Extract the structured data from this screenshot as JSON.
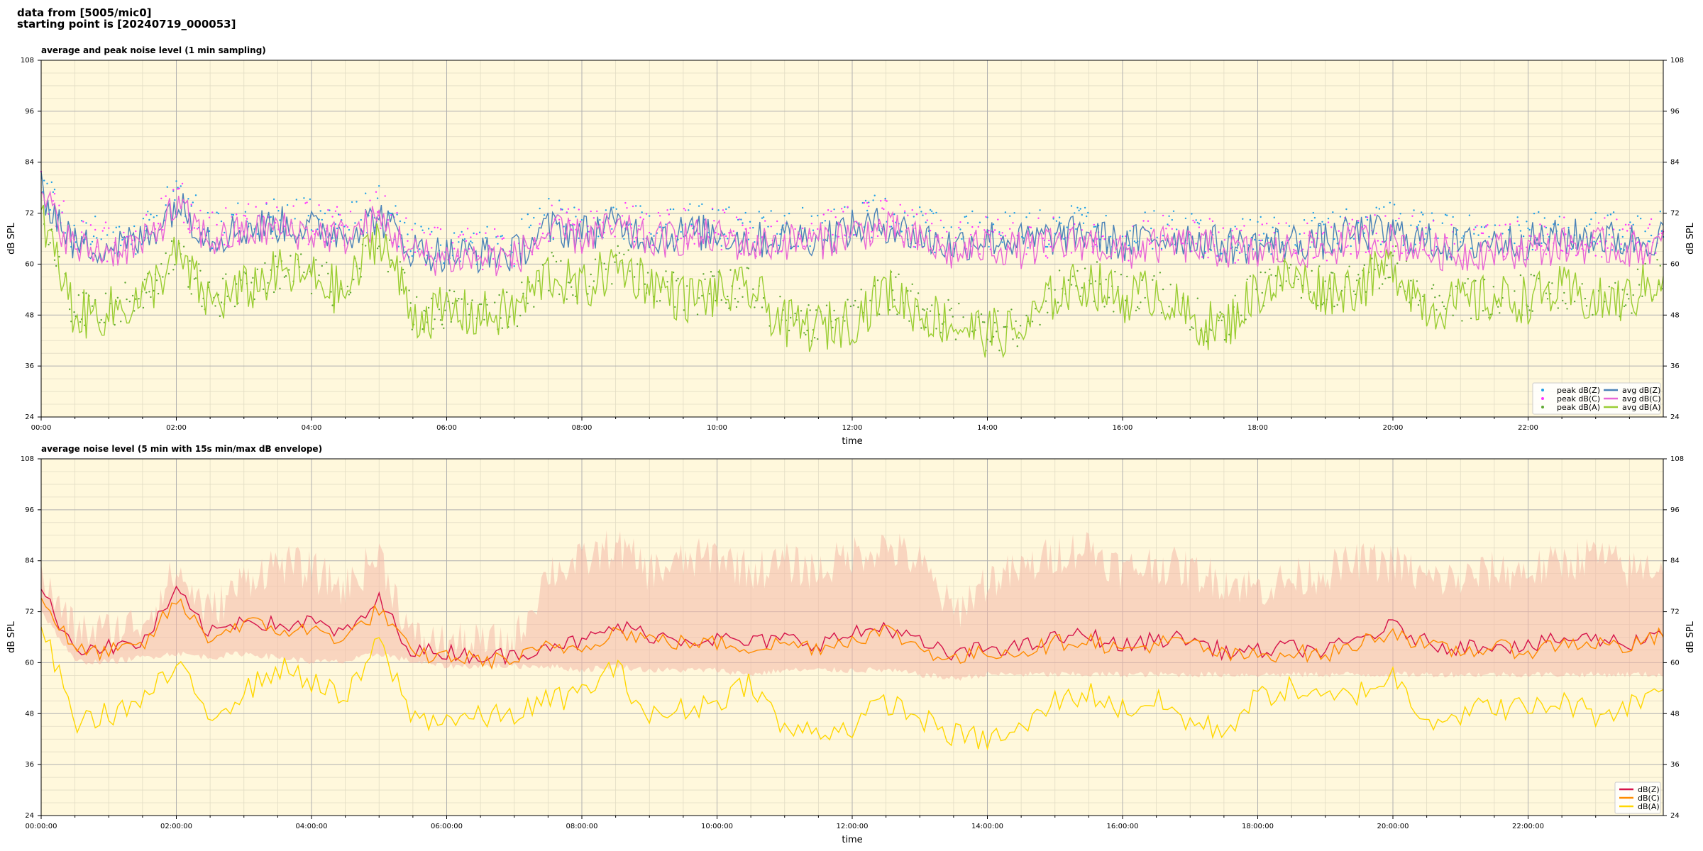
{
  "header": {
    "line1": "data from [5005/mic0]",
    "line2": "starting point is [20240719_000053]"
  },
  "chart_data": [
    {
      "type": "line",
      "title": "average and peak noise level (1 min sampling)",
      "xlabel": "time",
      "ylabel": "dB SPL",
      "xlim": [
        0,
        24
      ],
      "ylim": [
        24,
        108
      ],
      "x_ticks": [
        "00:00",
        "02:00",
        "04:00",
        "06:00",
        "08:00",
        "10:00",
        "12:00",
        "14:00",
        "16:00",
        "18:00",
        "20:00",
        "22:00"
      ],
      "y_ticks": [
        24,
        36,
        48,
        60,
        72,
        84,
        96,
        108
      ],
      "grid": true,
      "background": "#fff8dc",
      "legend_position": "lower right",
      "legend": [
        {
          "name": "peak dB(Z)",
          "kind": "dot",
          "color": "#1f9fe6"
        },
        {
          "name": "peak dB(C)",
          "kind": "dot",
          "color": "#ff33ff"
        },
        {
          "name": "peak dB(A)",
          "kind": "dot",
          "color": "#5fa832"
        },
        {
          "name": "avg dB(Z)",
          "kind": "line",
          "color": "#4a82b8"
        },
        {
          "name": "avg dB(C)",
          "kind": "line",
          "color": "#e866d6"
        },
        {
          "name": "avg dB(A)",
          "kind": "line",
          "color": "#9acd32"
        }
      ],
      "x": [
        0,
        0.5,
        1,
        1.5,
        2,
        2.5,
        3,
        3.5,
        4,
        4.5,
        5,
        5.5,
        6,
        6.5,
        7,
        7.5,
        8,
        8.5,
        9,
        9.5,
        10,
        10.5,
        11,
        11.5,
        12,
        12.5,
        13,
        13.5,
        14,
        14.5,
        15,
        15.5,
        16,
        16.5,
        17,
        17.5,
        18,
        18.5,
        19,
        19.5,
        20,
        20.5,
        21,
        21.5,
        22,
        22.5,
        23,
        23.5,
        24
      ],
      "series": [
        {
          "name": "avg dB(Z)",
          "color": "#4a82b8",
          "values": [
            76,
            63,
            63,
            64,
            73,
            65,
            67,
            68,
            67,
            66,
            70,
            62,
            61,
            61,
            61,
            67,
            66,
            68,
            65,
            66,
            66,
            64,
            65,
            65,
            67,
            68,
            65,
            63,
            65,
            64,
            65,
            66,
            63,
            65,
            65,
            63,
            63,
            64,
            64,
            66,
            66,
            64,
            63,
            64,
            64,
            65,
            65,
            64,
            65
          ]
        },
        {
          "name": "avg dB(C)",
          "color": "#e866d6",
          "values": [
            75,
            62,
            62,
            63,
            72,
            64,
            66,
            67,
            66,
            65,
            69,
            61,
            60,
            60,
            60,
            66,
            65,
            67,
            64,
            65,
            65,
            63,
            64,
            64,
            66,
            67,
            64,
            61,
            63,
            62,
            63,
            64,
            61,
            63,
            63,
            62,
            61,
            62,
            62,
            64,
            64,
            62,
            61,
            62,
            62,
            63,
            63,
            62,
            63
          ]
        },
        {
          "name": "avg dB(A)",
          "color": "#9acd32",
          "values": [
            70,
            46,
            47,
            50,
            60,
            49,
            52,
            56,
            55,
            51,
            66,
            46,
            47,
            46,
            47,
            56,
            52,
            58,
            54,
            50,
            51,
            52,
            44,
            43,
            45,
            52,
            47,
            44,
            42,
            42,
            51,
            54,
            50,
            52,
            45,
            43,
            52,
            55,
            52,
            53,
            58,
            48,
            49,
            50,
            50,
            52,
            49,
            50,
            56
          ]
        }
      ]
    },
    {
      "type": "line",
      "title": "average noise level (5 min with 15s min/max dB envelope)",
      "xlabel": "time",
      "ylabel": "dB SPL",
      "xlim": [
        0,
        24
      ],
      "ylim": [
        24,
        108
      ],
      "x_ticks": [
        "00:00:00",
        "02:00:00",
        "04:00:00",
        "06:00:00",
        "08:00:00",
        "10:00:00",
        "12:00:00",
        "14:00:00",
        "16:00:00",
        "18:00:00",
        "20:00:00",
        "22:00:00"
      ],
      "y_ticks": [
        24,
        36,
        48,
        60,
        72,
        84,
        96,
        108
      ],
      "grid": true,
      "background": "#fff8dc",
      "legend_position": "lower right",
      "legend": [
        {
          "name": "dB(Z)",
          "kind": "line",
          "color": "#d6134a"
        },
        {
          "name": "dB(C)",
          "kind": "line",
          "color": "#ff8c00"
        },
        {
          "name": "dB(A)",
          "kind": "line",
          "color": "#ffd700"
        }
      ],
      "envelope_color": "#f4b8a8",
      "x": [
        0,
        0.5,
        1,
        1.5,
        2,
        2.5,
        3,
        3.5,
        4,
        4.5,
        5,
        5.5,
        6,
        6.5,
        7,
        7.5,
        8,
        8.5,
        9,
        9.5,
        10,
        10.5,
        11,
        11.5,
        12,
        12.5,
        13,
        13.5,
        14,
        14.5,
        15,
        15.5,
        16,
        16.5,
        17,
        17.5,
        18,
        18.5,
        19,
        19.5,
        20,
        20.5,
        21,
        21.5,
        22,
        22.5,
        23,
        23.5,
        24
      ],
      "envelope_max": [
        78,
        66,
        66,
        68,
        80,
        70,
        78,
        82,
        80,
        76,
        84,
        64,
        63,
        63,
        63,
        80,
        82,
        86,
        80,
        82,
        84,
        80,
        82,
        80,
        84,
        86,
        82,
        70,
        78,
        80,
        84,
        86,
        80,
        82,
        80,
        78,
        76,
        78,
        80,
        82,
        82,
        78,
        78,
        80,
        80,
        82,
        84,
        80,
        82
      ],
      "envelope_min": [
        72,
        60,
        60,
        61,
        62,
        61,
        62,
        61,
        60,
        60,
        62,
        60,
        59,
        59,
        59,
        59,
        58,
        59,
        58,
        58,
        58,
        57,
        58,
        58,
        58,
        58,
        57,
        56,
        57,
        57,
        57,
        57,
        57,
        57,
        57,
        57,
        57,
        57,
        57,
        57,
        57,
        57,
        57,
        57,
        57,
        57,
        57,
        57,
        57
      ],
      "series": [
        {
          "name": "dB(Z)",
          "color": "#d6134a",
          "values": [
            76,
            63,
            63,
            64,
            76,
            66,
            70,
            68,
            69,
            66,
            74,
            62,
            62,
            61,
            61,
            64,
            64,
            68,
            66,
            65,
            65,
            64,
            65,
            64,
            66,
            68,
            64,
            61,
            63,
            63,
            65,
            66,
            63,
            65,
            65,
            62,
            62,
            63,
            62,
            65,
            68,
            64,
            63,
            64,
            63,
            65,
            65,
            64,
            67
          ]
        },
        {
          "name": "dB(C)",
          "color": "#ff8c00",
          "values": [
            75,
            62,
            62,
            63,
            74,
            65,
            69,
            67,
            67,
            65,
            72,
            61,
            61,
            60,
            60,
            63,
            63,
            67,
            65,
            64,
            64,
            63,
            64,
            63,
            65,
            67,
            63,
            60,
            62,
            62,
            64,
            65,
            62,
            64,
            64,
            61,
            61,
            62,
            61,
            64,
            67,
            63,
            62,
            63,
            62,
            64,
            64,
            63,
            66
          ]
        },
        {
          "name": "dB(A)",
          "color": "#ffd700",
          "values": [
            68,
            45,
            47,
            50,
            58,
            47,
            52,
            58,
            55,
            50,
            64,
            46,
            46,
            46,
            47,
            50,
            52,
            58,
            46,
            48,
            50,
            55,
            43,
            43,
            44,
            50,
            46,
            42,
            41,
            43,
            50,
            52,
            48,
            50,
            45,
            43,
            51,
            53,
            50,
            52,
            56,
            46,
            47,
            49,
            48,
            50,
            47,
            49,
            54
          ]
        }
      ]
    }
  ]
}
